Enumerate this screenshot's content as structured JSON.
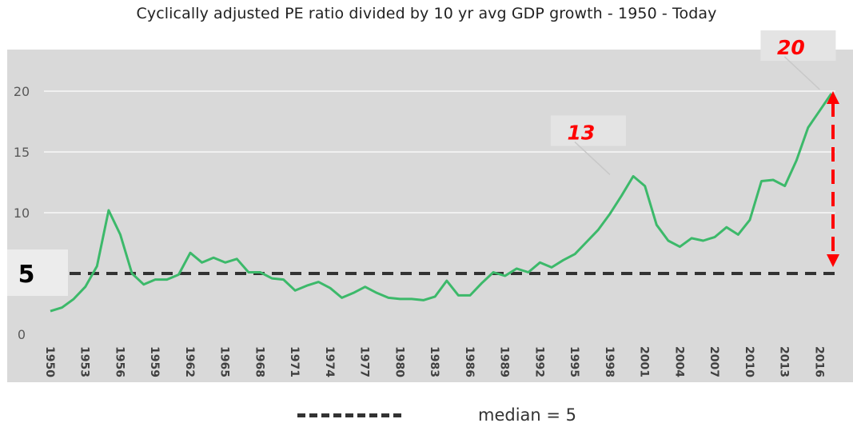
{
  "chart_data": {
    "type": "line",
    "title": "Cyclically adjusted PE ratio divided by 10 yr avg GDP growth - 1950 - Today",
    "x": [
      1950,
      1951,
      1952,
      1953,
      1954,
      1955,
      1956,
      1957,
      1958,
      1959,
      1960,
      1961,
      1962,
      1963,
      1964,
      1965,
      1966,
      1967,
      1968,
      1969,
      1970,
      1971,
      1972,
      1973,
      1974,
      1975,
      1976,
      1977,
      1978,
      1979,
      1980,
      1981,
      1982,
      1983,
      1984,
      1985,
      1986,
      1987,
      1988,
      1989,
      1990,
      1991,
      1992,
      1993,
      1994,
      1995,
      1996,
      1997,
      1998,
      1999,
      2000,
      2001,
      2002,
      2003,
      2004,
      2005,
      2006,
      2007,
      2008,
      2009,
      2010,
      2011,
      2012,
      2013,
      2014,
      2015,
      2016,
      2017
    ],
    "series": [
      {
        "name": "",
        "color": "#3cb96a",
        "values": [
          1.9,
          2.2,
          2.9,
          3.9,
          5.6,
          10.2,
          8.2,
          5.0,
          4.1,
          4.5,
          4.5,
          4.9,
          6.7,
          5.9,
          6.3,
          5.9,
          6.2,
          5.1,
          5.1,
          4.6,
          4.5,
          3.6,
          4.0,
          4.3,
          3.8,
          3.0,
          3.4,
          3.9,
          3.4,
          3.0,
          2.9,
          2.9,
          2.8,
          3.1,
          4.4,
          3.2,
          3.2,
          4.2,
          5.1,
          4.8,
          5.4,
          5.1,
          5.9,
          5.5,
          6.1,
          6.6,
          7.6,
          8.6,
          9.9,
          11.4,
          13.0,
          12.2,
          9.0,
          7.7,
          7.2,
          7.9,
          7.7,
          8.0,
          8.8,
          8.2,
          9.4,
          12.6,
          12.7,
          12.2,
          14.3,
          17.0,
          18.4,
          19.8
        ]
      }
    ],
    "ylim": [
      0,
      22
    ],
    "yticks": [
      0,
      5,
      10,
      15,
      20
    ],
    "xtick_labels": [
      "1950",
      "1953",
      "1956",
      "1959",
      "1962",
      "1965",
      "1968",
      "1971",
      "1974",
      "1977",
      "1980",
      "1983",
      "1986",
      "1989",
      "1992",
      "1995",
      "1998",
      "2001",
      "2004",
      "2007",
      "2010",
      "2013",
      "2016"
    ],
    "median_line": {
      "value": 5,
      "label": "5",
      "color": "#333333"
    },
    "annotations": [
      {
        "text": "13",
        "x": 1998,
        "y": 13,
        "color": "#ff0000"
      },
      {
        "text": "20",
        "x": 2016,
        "y": 20,
        "color": "#ff0000"
      }
    ],
    "legend": {
      "label": "median = 5",
      "placement": "bottom"
    },
    "plot_background": "#d9d9d9",
    "gridline_color": "#f0f0f0",
    "arrow_color": "#ff0000",
    "grid": true
  }
}
